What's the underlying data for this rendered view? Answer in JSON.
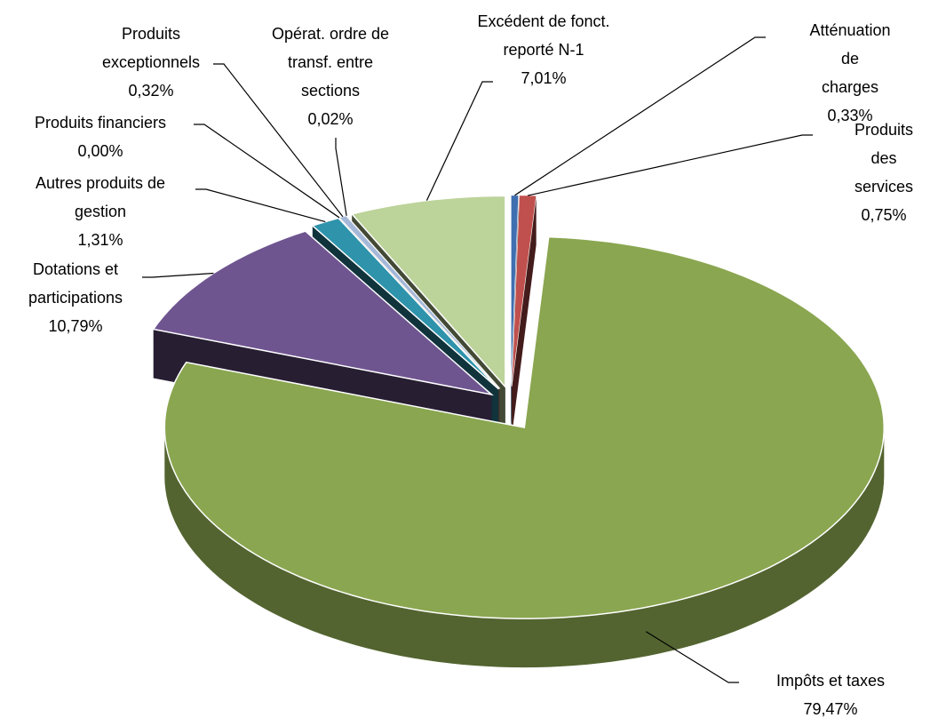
{
  "chart_data": {
    "type": "pie3d",
    "categories": [
      "Atténuation de\ncharges",
      "Produits des\nservices",
      "Impôts et taxes",
      "Dotations et\nparticipations",
      "Autres produits de\ngestion",
      "Produits financiers",
      "Produits\nexceptionnels",
      "Opérat. ordre de\ntransf. entre\nsections",
      "Excédent de fonct.\nreporté N-1"
    ],
    "values": [
      0.33,
      0.75,
      79.47,
      10.79,
      1.31,
      0.0,
      0.32,
      0.02,
      7.01
    ],
    "value_labels": [
      "0,33%",
      "0,75%",
      "79,47%",
      "10,79%",
      "1,31%",
      "0,00%",
      "0,32%",
      "0,02%",
      "7,01%"
    ],
    "colors": [
      "#3f6fb0",
      "#c0504d",
      "#8aa650",
      "#6f5590",
      "#2e93ab",
      "#f79646",
      "#a5b8d8",
      "#c9a9a8",
      "#bcd39a"
    ]
  }
}
